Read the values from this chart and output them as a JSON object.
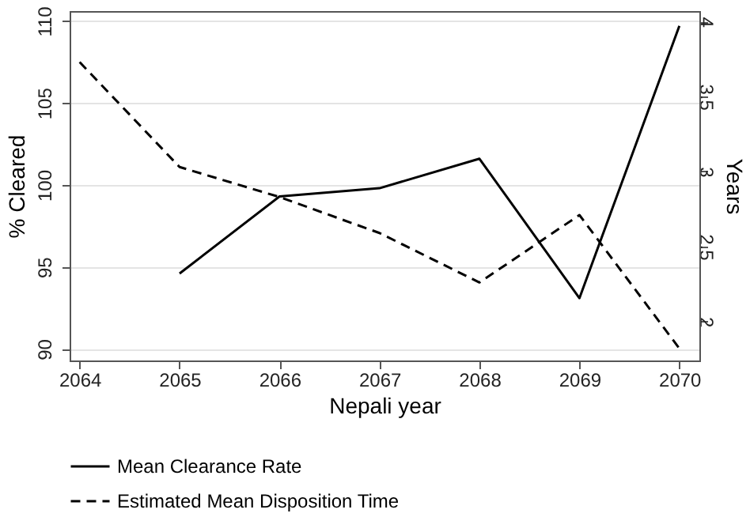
{
  "chart_data": {
    "type": "line",
    "xlabel": "Nepali year",
    "ylabel": "% Cleared",
    "y2label": "Years",
    "x": [
      2064,
      2065,
      2066,
      2067,
      2068,
      2069,
      2070
    ],
    "series": [
      {
        "name": "Mean Clearance Rate",
        "color": "#000000",
        "line_style": "solid",
        "values": [
          null,
          94.6,
          99.3,
          99.8,
          101.6,
          93.1,
          109.7
        ]
      },
      {
        "name": "Estimated Mean Disposition Time",
        "color": "#000000",
        "line_style": "dashed",
        "axis": "y2",
        "values": [
          3.73,
          3.03,
          2.83,
          2.59,
          2.26,
          2.71,
          1.82
        ]
      }
    ],
    "xlim": [
      2063.9,
      2070.2
    ],
    "xticks": [
      2064,
      2065,
      2066,
      2067,
      2068,
      2069,
      2070
    ],
    "ylim": [
      89.3,
      110.6
    ],
    "yticks": [
      90,
      95,
      100,
      105,
      110
    ],
    "y2lim": [
      1.74,
      4.07
    ],
    "y2ticks": [
      2,
      2.5,
      3,
      3.5,
      4
    ],
    "grid": "y",
    "legend": "bottom",
    "marker": "none"
  }
}
